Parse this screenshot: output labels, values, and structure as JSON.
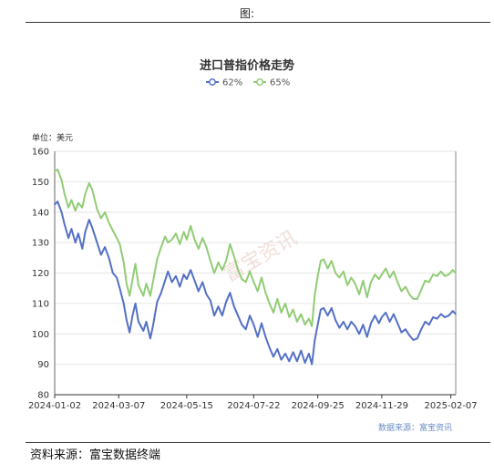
{
  "figure_label": "图:",
  "source_note": "资料来源：富宝数据终端",
  "chart_data": {
    "type": "line",
    "title": "进口普指价格走势",
    "unit_label": "单位：美元",
    "credit": "数据来源：富宝资讯",
    "watermark": "富宝资讯",
    "ylim": [
      80,
      160
    ],
    "y_ticks": [
      "160",
      "150",
      "140",
      "130",
      "120",
      "110",
      "100",
      "90",
      "80"
    ],
    "x_range": [
      "2024-01-02",
      "2025-02-12"
    ],
    "x_ticks": [
      "2024-01-02",
      "2024-03-07",
      "2024-05-15",
      "2024-07-22",
      "2024-09-25",
      "2024-11-29",
      "2025-02-07"
    ],
    "grid": true,
    "legend_position": "top-center",
    "series": [
      {
        "name": "62%",
        "color": "#5470c6",
        "points": [
          [
            "2024-01-02",
            142.5
          ],
          [
            "2024-01-05",
            143.5
          ],
          [
            "2024-01-09",
            140.0
          ],
          [
            "2024-01-12",
            136.0
          ],
          [
            "2024-01-16",
            131.5
          ],
          [
            "2024-01-19",
            134.5
          ],
          [
            "2024-01-23",
            130.0
          ],
          [
            "2024-01-26",
            133.0
          ],
          [
            "2024-01-30",
            128.0
          ],
          [
            "2024-02-02",
            133.5
          ],
          [
            "2024-02-06",
            137.5
          ],
          [
            "2024-02-09",
            135.0
          ],
          [
            "2024-02-14",
            130.0
          ],
          [
            "2024-02-18",
            126.0
          ],
          [
            "2024-02-22",
            128.5
          ],
          [
            "2024-02-26",
            125.0
          ],
          [
            "2024-03-01",
            120.0
          ],
          [
            "2024-03-05",
            118.5
          ],
          [
            "2024-03-08",
            115.0
          ],
          [
            "2024-03-12",
            110.0
          ],
          [
            "2024-03-15",
            104.5
          ],
          [
            "2024-03-18",
            100.5
          ],
          [
            "2024-03-21",
            106.0
          ],
          [
            "2024-03-24",
            110.0
          ],
          [
            "2024-03-27",
            104.0
          ],
          [
            "2024-04-01",
            101.0
          ],
          [
            "2024-04-04",
            104.0
          ],
          [
            "2024-04-08",
            98.5
          ],
          [
            "2024-04-11",
            103.0
          ],
          [
            "2024-04-15",
            110.5
          ],
          [
            "2024-04-19",
            113.5
          ],
          [
            "2024-04-23",
            117.5
          ],
          [
            "2024-04-26",
            120.5
          ],
          [
            "2024-04-30",
            117.0
          ],
          [
            "2024-05-04",
            119.0
          ],
          [
            "2024-05-08",
            115.5
          ],
          [
            "2024-05-12",
            119.5
          ],
          [
            "2024-05-15",
            118.0
          ],
          [
            "2024-05-19",
            121.0
          ],
          [
            "2024-05-23",
            117.5
          ],
          [
            "2024-05-27",
            114.0
          ],
          [
            "2024-05-31",
            117.0
          ],
          [
            "2024-06-04",
            113.0
          ],
          [
            "2024-06-08",
            111.0
          ],
          [
            "2024-06-12",
            106.0
          ],
          [
            "2024-06-16",
            109.0
          ],
          [
            "2024-06-20",
            106.0
          ],
          [
            "2024-06-24",
            110.5
          ],
          [
            "2024-06-28",
            113.5
          ],
          [
            "2024-07-02",
            109.0
          ],
          [
            "2024-07-06",
            106.0
          ],
          [
            "2024-07-10",
            103.0
          ],
          [
            "2024-07-14",
            101.5
          ],
          [
            "2024-07-18",
            106.0
          ],
          [
            "2024-07-22",
            103.0
          ],
          [
            "2024-07-26",
            99.0
          ],
          [
            "2024-07-30",
            103.5
          ],
          [
            "2024-08-03",
            99.0
          ],
          [
            "2024-08-07",
            95.5
          ],
          [
            "2024-08-11",
            92.5
          ],
          [
            "2024-08-15",
            95.0
          ],
          [
            "2024-08-19",
            91.5
          ],
          [
            "2024-08-23",
            93.5
          ],
          [
            "2024-08-27",
            91.0
          ],
          [
            "2024-08-31",
            94.0
          ],
          [
            "2024-09-04",
            91.0
          ],
          [
            "2024-09-08",
            94.5
          ],
          [
            "2024-09-12",
            90.5
          ],
          [
            "2024-09-16",
            93.5
          ],
          [
            "2024-09-19",
            90.0
          ],
          [
            "2024-09-22",
            98.0
          ],
          [
            "2024-09-25",
            103.0
          ],
          [
            "2024-09-28",
            108.0
          ],
          [
            "2024-10-01",
            108.5
          ],
          [
            "2024-10-05",
            106.0
          ],
          [
            "2024-10-09",
            108.5
          ],
          [
            "2024-10-13",
            104.5
          ],
          [
            "2024-10-17",
            102.0
          ],
          [
            "2024-10-21",
            104.0
          ],
          [
            "2024-10-25",
            101.5
          ],
          [
            "2024-10-29",
            104.0
          ],
          [
            "2024-11-02",
            102.5
          ],
          [
            "2024-11-06",
            100.0
          ],
          [
            "2024-11-10",
            103.0
          ],
          [
            "2024-11-14",
            99.0
          ],
          [
            "2024-11-18",
            103.5
          ],
          [
            "2024-11-22",
            106.0
          ],
          [
            "2024-11-26",
            103.5
          ],
          [
            "2024-11-29",
            105.5
          ],
          [
            "2024-12-03",
            107.0
          ],
          [
            "2024-12-07",
            104.0
          ],
          [
            "2024-12-11",
            106.5
          ],
          [
            "2024-12-15",
            103.5
          ],
          [
            "2024-12-19",
            100.5
          ],
          [
            "2024-12-23",
            101.5
          ],
          [
            "2024-12-27",
            99.5
          ],
          [
            "2024-12-31",
            98.0
          ],
          [
            "2025-01-04",
            98.5
          ],
          [
            "2025-01-08",
            101.5
          ],
          [
            "2025-01-12",
            104.0
          ],
          [
            "2025-01-16",
            103.0
          ],
          [
            "2025-01-20",
            105.5
          ],
          [
            "2025-01-24",
            105.0
          ],
          [
            "2025-01-28",
            106.5
          ],
          [
            "2025-02-01",
            105.5
          ],
          [
            "2025-02-05",
            106.0
          ],
          [
            "2025-02-09",
            107.5
          ],
          [
            "2025-02-12",
            106.5
          ]
        ]
      },
      {
        "name": "65%",
        "color": "#91cc75",
        "points": [
          [
            "2024-01-02",
            153.5
          ],
          [
            "2024-01-05",
            154.0
          ],
          [
            "2024-01-09",
            150.5
          ],
          [
            "2024-01-12",
            146.0
          ],
          [
            "2024-01-16",
            141.5
          ],
          [
            "2024-01-19",
            144.0
          ],
          [
            "2024-01-23",
            140.5
          ],
          [
            "2024-01-26",
            143.0
          ],
          [
            "2024-01-30",
            141.5
          ],
          [
            "2024-02-02",
            146.0
          ],
          [
            "2024-02-06",
            149.5
          ],
          [
            "2024-02-09",
            147.5
          ],
          [
            "2024-02-14",
            141.0
          ],
          [
            "2024-02-18",
            138.0
          ],
          [
            "2024-02-22",
            140.0
          ],
          [
            "2024-02-26",
            136.5
          ],
          [
            "2024-03-01",
            134.0
          ],
          [
            "2024-03-05",
            131.5
          ],
          [
            "2024-03-08",
            129.5
          ],
          [
            "2024-03-12",
            123.5
          ],
          [
            "2024-03-15",
            116.5
          ],
          [
            "2024-03-18",
            112.5
          ],
          [
            "2024-03-21",
            118.0
          ],
          [
            "2024-03-24",
            123.0
          ],
          [
            "2024-03-27",
            116.0
          ],
          [
            "2024-04-01",
            112.5
          ],
          [
            "2024-04-04",
            116.5
          ],
          [
            "2024-04-08",
            112.5
          ],
          [
            "2024-04-11",
            117.5
          ],
          [
            "2024-04-15",
            124.5
          ],
          [
            "2024-04-19",
            128.5
          ],
          [
            "2024-04-23",
            132.0
          ],
          [
            "2024-04-26",
            130.0
          ],
          [
            "2024-04-30",
            131.0
          ],
          [
            "2024-05-04",
            133.0
          ],
          [
            "2024-05-08",
            129.5
          ],
          [
            "2024-05-12",
            133.5
          ],
          [
            "2024-05-15",
            131.0
          ],
          [
            "2024-05-19",
            135.5
          ],
          [
            "2024-05-23",
            131.0
          ],
          [
            "2024-05-27",
            128.0
          ],
          [
            "2024-05-31",
            131.5
          ],
          [
            "2024-06-04",
            128.5
          ],
          [
            "2024-06-08",
            124.0
          ],
          [
            "2024-06-12",
            120.0
          ],
          [
            "2024-06-16",
            123.5
          ],
          [
            "2024-06-20",
            121.0
          ],
          [
            "2024-06-24",
            124.0
          ],
          [
            "2024-06-28",
            129.5
          ],
          [
            "2024-07-02",
            125.5
          ],
          [
            "2024-07-06",
            121.0
          ],
          [
            "2024-07-10",
            118.0
          ],
          [
            "2024-07-14",
            117.0
          ],
          [
            "2024-07-18",
            120.5
          ],
          [
            "2024-07-22",
            117.0
          ],
          [
            "2024-07-26",
            114.0
          ],
          [
            "2024-07-30",
            118.5
          ],
          [
            "2024-08-03",
            113.5
          ],
          [
            "2024-08-07",
            110.0
          ],
          [
            "2024-08-11",
            107.0
          ],
          [
            "2024-08-15",
            111.5
          ],
          [
            "2024-08-19",
            107.0
          ],
          [
            "2024-08-23",
            110.0
          ],
          [
            "2024-08-27",
            105.5
          ],
          [
            "2024-08-31",
            108.0
          ],
          [
            "2024-09-04",
            104.0
          ],
          [
            "2024-09-08",
            106.5
          ],
          [
            "2024-09-12",
            103.0
          ],
          [
            "2024-09-16",
            105.0
          ],
          [
            "2024-09-19",
            102.5
          ],
          [
            "2024-09-22",
            113.0
          ],
          [
            "2024-09-25",
            119.0
          ],
          [
            "2024-09-28",
            124.0
          ],
          [
            "2024-10-01",
            124.5
          ],
          [
            "2024-10-05",
            121.5
          ],
          [
            "2024-10-09",
            124.0
          ],
          [
            "2024-10-13",
            120.0
          ],
          [
            "2024-10-17",
            118.5
          ],
          [
            "2024-10-21",
            120.5
          ],
          [
            "2024-10-25",
            116.0
          ],
          [
            "2024-10-29",
            118.5
          ],
          [
            "2024-11-02",
            116.5
          ],
          [
            "2024-11-06",
            113.0
          ],
          [
            "2024-11-10",
            117.5
          ],
          [
            "2024-11-14",
            112.0
          ],
          [
            "2024-11-18",
            117.0
          ],
          [
            "2024-11-22",
            119.5
          ],
          [
            "2024-11-26",
            118.0
          ],
          [
            "2024-11-29",
            119.5
          ],
          [
            "2024-12-03",
            121.5
          ],
          [
            "2024-12-07",
            118.5
          ],
          [
            "2024-12-11",
            120.5
          ],
          [
            "2024-12-15",
            117.0
          ],
          [
            "2024-12-19",
            114.0
          ],
          [
            "2024-12-23",
            115.5
          ],
          [
            "2024-12-27",
            113.0
          ],
          [
            "2024-12-31",
            111.5
          ],
          [
            "2025-01-04",
            111.5
          ],
          [
            "2025-01-08",
            114.5
          ],
          [
            "2025-01-12",
            117.5
          ],
          [
            "2025-01-16",
            117.0
          ],
          [
            "2025-01-20",
            119.5
          ],
          [
            "2025-01-24",
            119.0
          ],
          [
            "2025-01-28",
            120.5
          ],
          [
            "2025-02-01",
            119.0
          ],
          [
            "2025-02-05",
            119.5
          ],
          [
            "2025-02-09",
            121.0
          ],
          [
            "2025-02-12",
            120.0
          ]
        ]
      }
    ]
  }
}
